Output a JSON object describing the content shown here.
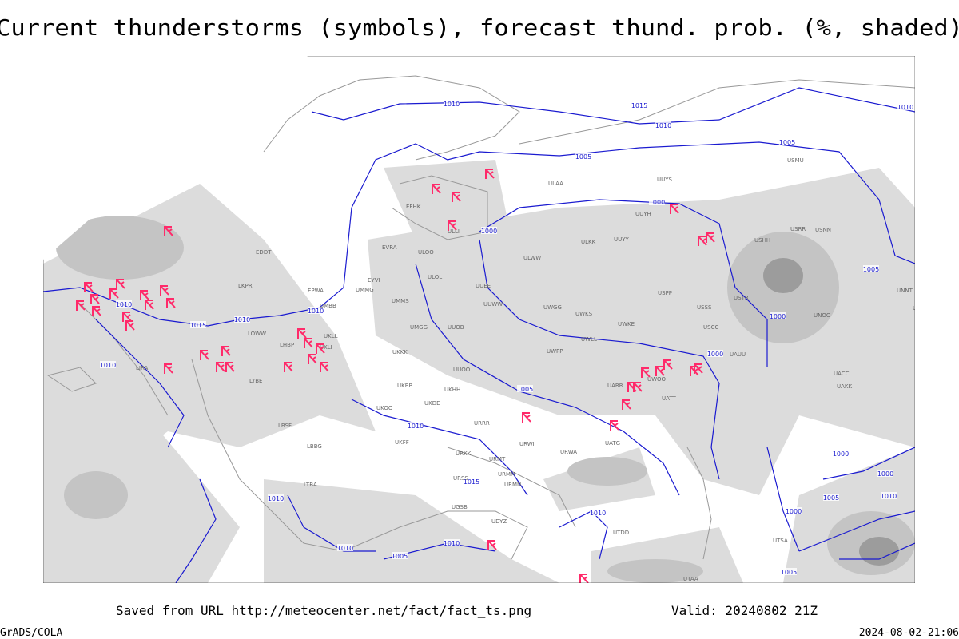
{
  "header": {
    "title": "Current thunderstorms (symbols), forecast thund. prob. (%, shaded)"
  },
  "isobar_labels": [
    "1010",
    "1015",
    "1010",
    "1005",
    "1005",
    "1000",
    "1000",
    "1005",
    "1000",
    "1000",
    "1010",
    "1015",
    "1010",
    "1010",
    "1010",
    "1005",
    "1010",
    "1015",
    "1010",
    "1010",
    "1010",
    "1005",
    "1010",
    "1000",
    "1005",
    "1010",
    "1000",
    "1000",
    "1005",
    "1010"
  ],
  "stations": [
    "EFHK",
    "ULOO",
    "ULOL",
    "UUEE",
    "UUWW",
    "UMMS",
    "UMGG",
    "UKKK",
    "UKBB",
    "UKHH",
    "UUOO",
    "UUOB",
    "UWPP",
    "UWGG",
    "UWKS",
    "UWKE",
    "UWLL",
    "USPP",
    "USSS",
    "USCC",
    "USTR",
    "UNNT",
    "UNBB",
    "UNOO",
    "UACC",
    "UAKK",
    "UATT",
    "UARR",
    "UWOO",
    "UATG",
    "UAUU",
    "USHH",
    "USRR",
    "USNN",
    "USMU",
    "UUYY",
    "ULKK",
    "ULWW",
    "UUYH",
    "ULAA",
    "UUYS",
    "UKDE",
    "UKOO",
    "URRR",
    "URWI",
    "URWA",
    "URMT",
    "URMM",
    "URMN",
    "UGSB",
    "UDYZ",
    "UTDD",
    "UTSA",
    "UTAA",
    "EPWA",
    "EYVI",
    "EVRA",
    "EDDT",
    "UMMG",
    "UMBB",
    "LKPR",
    "LOWW",
    "LHBP",
    "LYBE",
    "LBSF",
    "LBBG",
    "LTBA",
    "LIRA",
    "UKFF",
    "URKK",
    "URSS",
    "UKLL",
    "UKLI",
    "ULLI"
  ],
  "footer": {
    "source": "Saved from URL http://meteocenter.net/fact/fact_ts.png",
    "valid": "Valid: 20240802 21Z",
    "software": "GrADS/COLA",
    "timestamp": "2024-08-02-21:06"
  }
}
